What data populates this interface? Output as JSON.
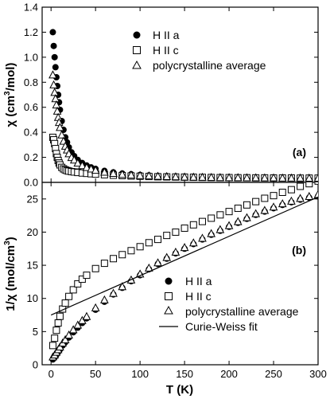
{
  "chart_data": [
    {
      "panel_label": "(a)",
      "type": "scatter",
      "xlabel": "T (K)",
      "ylabel": "χ (cm³/mol)",
      "ylabel_parts": {
        "pre": "χ (cm",
        "sup": "3",
        "post": "/mol)"
      },
      "xlim": [
        -10,
        300
      ],
      "ylim": [
        0,
        1.4
      ],
      "yticks": [
        0.0,
        0.2,
        0.4,
        0.6,
        0.8,
        1.0,
        1.2,
        1.4
      ],
      "yticklabels": [
        "0.0",
        "0.2",
        "0.4",
        "0.6",
        "0.8",
        "1.0",
        "1.2",
        "1.4"
      ],
      "legend_position": "top-center",
      "series": [
        {
          "name": "H II a",
          "marker": "filled-circle",
          "x": [
            2,
            3,
            4,
            5,
            6,
            7,
            8,
            9,
            10,
            12,
            14,
            16,
            18,
            20,
            23,
            26,
            30,
            35,
            40,
            45,
            50,
            60,
            70,
            80,
            90,
            100,
            110,
            120,
            130,
            140,
            150,
            160,
            170,
            180,
            190,
            200,
            210,
            220,
            230,
            240,
            250,
            260,
            270,
            280,
            290,
            300
          ],
          "y": [
            1.2,
            1.09,
            1.0,
            0.92,
            0.84,
            0.77,
            0.7,
            0.64,
            0.58,
            0.49,
            0.42,
            0.36,
            0.32,
            0.28,
            0.24,
            0.21,
            0.18,
            0.155,
            0.135,
            0.12,
            0.108,
            0.092,
            0.08,
            0.071,
            0.065,
            0.06,
            0.056,
            0.052,
            0.05,
            0.048,
            0.046,
            0.044,
            0.043,
            0.042,
            0.041,
            0.04,
            0.04,
            0.039,
            0.039,
            0.038,
            0.038,
            0.037,
            0.037,
            0.036,
            0.036,
            0.036
          ]
        },
        {
          "name": "H II c",
          "marker": "open-square",
          "x": [
            2,
            3,
            4,
            5,
            6,
            7,
            8,
            9,
            10,
            12,
            14,
            16,
            18,
            20,
            23,
            26,
            30,
            35,
            40,
            45,
            50,
            60,
            70,
            80,
            90,
            100,
            110,
            120,
            130,
            140,
            150,
            160,
            170,
            180,
            190,
            200,
            210,
            220,
            230,
            240,
            250,
            260,
            270,
            280,
            290,
            300
          ],
          "y": [
            0.36,
            0.34,
            0.31,
            0.27,
            0.23,
            0.2,
            0.175,
            0.155,
            0.14,
            0.12,
            0.108,
            0.1,
            0.094,
            0.09,
            0.086,
            0.083,
            0.079,
            0.075,
            0.072,
            0.069,
            0.066,
            0.061,
            0.057,
            0.054,
            0.051,
            0.049,
            0.047,
            0.045,
            0.044,
            0.043,
            0.042,
            0.041,
            0.04,
            0.039,
            0.038,
            0.038,
            0.037,
            0.037,
            0.036,
            0.036,
            0.035,
            0.035,
            0.035,
            0.034,
            0.034,
            0.034
          ]
        },
        {
          "name": "polycrystalline average",
          "marker": "open-triangle",
          "x": [
            2,
            3,
            4,
            5,
            6,
            7,
            8,
            9,
            10,
            12,
            14,
            16,
            18,
            20,
            23,
            26,
            30,
            35,
            40,
            45,
            50,
            60,
            70,
            80,
            90,
            100,
            110,
            120,
            130,
            140,
            150,
            160,
            170,
            180,
            190,
            200,
            210,
            220,
            230,
            240,
            250,
            260,
            270,
            280,
            290,
            300
          ],
          "y": [
            0.86,
            0.78,
            0.72,
            0.67,
            0.62,
            0.57,
            0.52,
            0.48,
            0.44,
            0.38,
            0.33,
            0.29,
            0.26,
            0.23,
            0.2,
            0.18,
            0.155,
            0.135,
            0.12,
            0.108,
            0.098,
            0.083,
            0.073,
            0.065,
            0.06,
            0.056,
            0.053,
            0.05,
            0.048,
            0.046,
            0.044,
            0.043,
            0.042,
            0.041,
            0.04,
            0.039,
            0.039,
            0.038,
            0.038,
            0.037,
            0.037,
            0.036,
            0.036,
            0.036,
            0.035,
            0.035
          ]
        }
      ]
    },
    {
      "panel_label": "(b)",
      "type": "scatter",
      "xlabel": "T (K)",
      "ylabel": "1/χ (mol/cm³)",
      "ylabel_parts": {
        "pre": "1/χ (mol/cm",
        "sup": "3",
        "post": ")"
      },
      "xlim": [
        -10,
        300
      ],
      "ylim": [
        0,
        27.5
      ],
      "xticks": [
        0,
        50,
        100,
        150,
        200,
        250,
        300
      ],
      "xticklabels": [
        "0",
        "50",
        "100",
        "150",
        "200",
        "250",
        "300"
      ],
      "yticks": [
        0,
        5,
        10,
        15,
        20,
        25
      ],
      "yticklabels": [
        "0",
        "5",
        "10",
        "15",
        "20",
        "25"
      ],
      "legend_position": "bottom-right",
      "series": [
        {
          "name": "H II a",
          "marker": "filled-circle",
          "x": [
            2,
            4,
            6,
            8,
            10,
            13,
            16,
            20,
            25,
            30,
            35,
            40,
            50,
            60,
            70,
            80,
            90,
            100,
            110,
            120,
            130,
            140,
            150,
            160,
            170,
            180,
            190,
            200,
            210,
            220,
            230,
            240,
            250,
            260,
            270,
            280,
            290,
            300
          ],
          "y": [
            0.8,
            1.1,
            1.5,
            1.9,
            2.3,
            2.9,
            3.4,
            4.1,
            4.9,
            5.6,
            6.3,
            7.0,
            8.3,
            9.5,
            10.6,
            11.6,
            12.6,
            13.5,
            14.4,
            15.2,
            16.0,
            16.8,
            17.5,
            18.2,
            18.9,
            19.6,
            20.2,
            20.8,
            21.4,
            22.0,
            22.6,
            23.1,
            23.6,
            24.1,
            24.5,
            24.9,
            25.2,
            25.4
          ]
        },
        {
          "name": "H II c",
          "marker": "open-square",
          "x": [
            2,
            4,
            6,
            8,
            10,
            13,
            16,
            20,
            25,
            30,
            35,
            40,
            50,
            60,
            70,
            80,
            90,
            100,
            110,
            120,
            130,
            140,
            150,
            160,
            170,
            180,
            190,
            200,
            210,
            220,
            230,
            240,
            250,
            260,
            270,
            280,
            290,
            300
          ],
          "y": [
            2.9,
            4.0,
            5.2,
            6.3,
            7.3,
            8.4,
            9.3,
            10.3,
            11.3,
            12.2,
            12.9,
            13.5,
            14.5,
            15.3,
            16.0,
            16.6,
            17.2,
            17.8,
            18.4,
            18.9,
            19.5,
            20.0,
            20.6,
            21.1,
            21.6,
            22.1,
            22.6,
            23.1,
            23.6,
            24.1,
            24.6,
            25.1,
            25.5,
            26.0,
            26.4,
            26.9,
            27.3,
            27.7
          ]
        },
        {
          "name": "polycrystalline average",
          "marker": "open-triangle",
          "x": [
            2,
            4,
            6,
            8,
            10,
            13,
            16,
            20,
            25,
            30,
            35,
            40,
            50,
            60,
            70,
            80,
            90,
            100,
            110,
            120,
            130,
            140,
            150,
            160,
            170,
            180,
            190,
            200,
            210,
            220,
            230,
            240,
            250,
            260,
            270,
            280,
            290,
            300
          ],
          "y": [
            1.2,
            1.5,
            1.9,
            2.3,
            2.7,
            3.3,
            3.8,
            4.5,
            5.3,
            6.0,
            6.7,
            7.3,
            8.6,
            9.8,
            10.8,
            11.8,
            12.8,
            13.7,
            14.6,
            15.4,
            16.2,
            17.0,
            17.7,
            18.4,
            19.1,
            19.8,
            20.4,
            21.0,
            21.6,
            22.2,
            22.8,
            23.3,
            23.8,
            24.3,
            24.7,
            25.1,
            25.4,
            25.7
          ]
        },
        {
          "name": "Curie-Weiss fit",
          "marker": "line",
          "x": [
            0,
            300
          ],
          "y": [
            7.5,
            25.3
          ]
        }
      ]
    }
  ]
}
